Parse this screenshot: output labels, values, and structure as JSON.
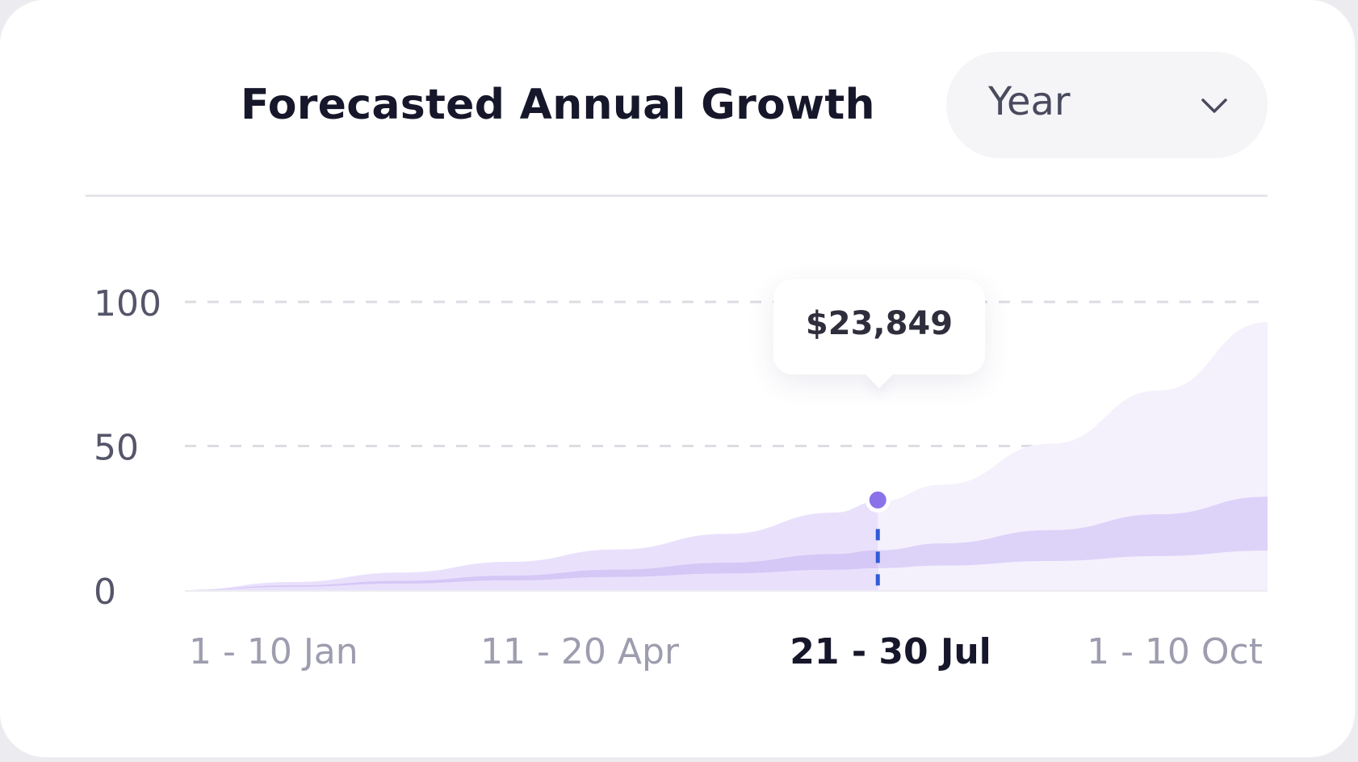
{
  "header": {
    "title": "Forecasted Annual Growth",
    "period_select": {
      "value": "Year",
      "icon": "chevron-down-icon"
    }
  },
  "chart_data": {
    "type": "area",
    "title": "Forecasted Annual Growth",
    "xlabel": "",
    "ylabel": "",
    "ylim": [
      0,
      100
    ],
    "yticks": [
      0,
      50,
      100
    ],
    "categories": [
      "1 - 10 Jan",
      "11 - 20 Apr",
      "21 - 30 Jul",
      "1 - 10 Oct"
    ],
    "x": [
      0,
      0.1,
      0.2,
      0.3,
      0.4,
      0.5,
      0.6,
      0.64,
      0.7,
      0.8,
      0.9,
      1.0
    ],
    "series": [
      {
        "values": [
          0,
          2.8,
          6.1,
          9.8,
          14.1,
          19.5,
          26.9,
          30.7,
          36.6,
          50.8,
          69.3,
          93.0
        ]
      },
      {
        "values": [
          0,
          1.6,
          3.2,
          5.0,
          7.1,
          9.5,
          12.5,
          13.8,
          16.2,
          20.8,
          26.3,
          32.4
        ]
      },
      {
        "values": [
          0,
          1.2,
          2.3,
          3.4,
          4.6,
          5.8,
          7.1,
          7.6,
          8.5,
          10.1,
          11.8,
          13.7
        ]
      }
    ],
    "highlight": {
      "category": "21 - 30 Jul",
      "x": 0.64,
      "y": 30.7,
      "value_label": "$23,849"
    },
    "grid": true,
    "colors": {
      "outer": "#e9e1fc",
      "middle": "#d5c7f6",
      "inner": "#b3a2ee",
      "marker": "#8b72ea",
      "guide": "#2f5bd6"
    }
  }
}
